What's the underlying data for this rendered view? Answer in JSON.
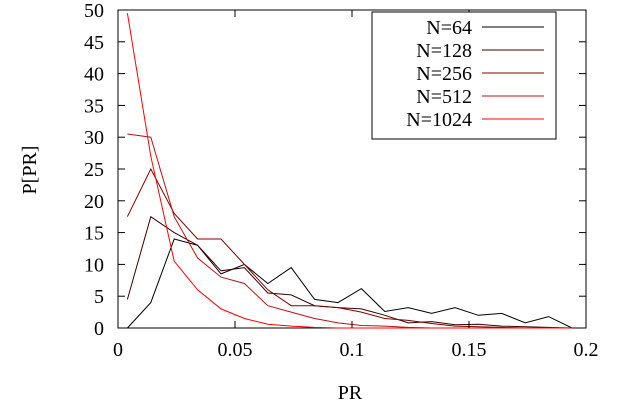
{
  "chart_data": {
    "type": "line",
    "title": "",
    "xlabel": "PR",
    "ylabel": "P[PR]",
    "xlim": [
      0,
      0.2
    ],
    "ylim": [
      0,
      50
    ],
    "xticks": [
      0,
      0.05,
      0.1,
      0.15,
      0.2
    ],
    "xtick_labels": [
      "0",
      "0.05",
      "0.1",
      "0.15",
      "0.2"
    ],
    "yticks": [
      0,
      5,
      10,
      15,
      20,
      25,
      30,
      35,
      40,
      45,
      50
    ],
    "ytick_labels": [
      "0",
      "5",
      "10",
      "15",
      "20",
      "25",
      "30",
      "35",
      "40",
      "45",
      "50"
    ],
    "grid": false,
    "legend_position": "top-right",
    "x": [
      0.004,
      0.014,
      0.024,
      0.034,
      0.044,
      0.054,
      0.064,
      0.074,
      0.084,
      0.094,
      0.104,
      0.114,
      0.124,
      0.134,
      0.144,
      0.154,
      0.164,
      0.174,
      0.184,
      0.194
    ],
    "series": [
      {
        "name": "N=64",
        "color": "#000000",
        "values": [
          0,
          4,
          14,
          13,
          8.5,
          10,
          7,
          9.5,
          4.5,
          4,
          6.2,
          2.6,
          3.2,
          2.3,
          3.2,
          2,
          2.3,
          0.8,
          1.8,
          0
        ]
      },
      {
        "name": "N=128",
        "color": "#3a0000",
        "values": [
          4.5,
          17.5,
          15,
          13,
          9,
          9.5,
          5.5,
          5.2,
          3.5,
          3.2,
          3,
          2,
          0.8,
          1,
          0.5,
          0.6,
          0.3,
          0.2,
          0.1,
          0
        ]
      },
      {
        "name": "N=256",
        "color": "#800000",
        "values": [
          17.5,
          25,
          18,
          14,
          14,
          10,
          6,
          3.5,
          3.5,
          3.2,
          2.5,
          1.5,
          1.2,
          0.7,
          0.3,
          0.2,
          0.1,
          0,
          0,
          0
        ]
      },
      {
        "name": "N=512",
        "color": "#c01010",
        "values": [
          30.5,
          30,
          17.5,
          11,
          8,
          7,
          3.5,
          2.5,
          1.5,
          0.8,
          0.4,
          0.3,
          0.1,
          0,
          0,
          0,
          0,
          0,
          0,
          0
        ]
      },
      {
        "name": "N=1024",
        "color": "#ff0000",
        "values": [
          49.5,
          27,
          10.5,
          6,
          3,
          1.5,
          0.6,
          0.3,
          0.1,
          0,
          0,
          0,
          0,
          0,
          0,
          0,
          0,
          0,
          0,
          0
        ]
      }
    ]
  }
}
